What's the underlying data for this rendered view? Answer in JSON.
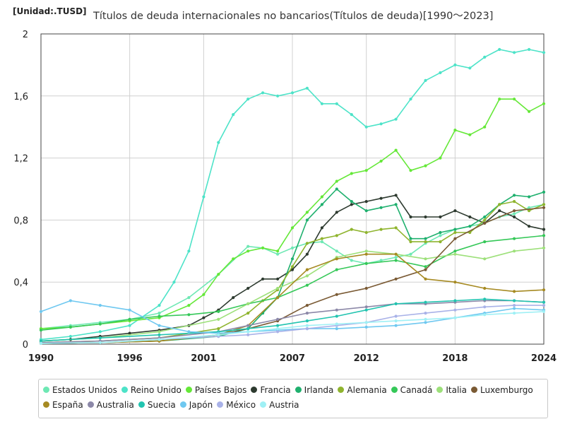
{
  "header": {
    "unit": "[Unidad:.TUSD]",
    "title": "Títulos de deuda internacionales no bancarios(Títulos de deuda)[1990～2023]"
  },
  "chart_data": {
    "type": "line",
    "title": "Títulos de deuda internacionales no bancarios(Títulos de deuda)[1990～2023]",
    "unit": "[Unidad:.TUSD]",
    "x_ticks": [
      "1990",
      "1996",
      "2001",
      "2007",
      "2012",
      "2018",
      "2024"
    ],
    "y_ticks": [
      "0",
      "0,4",
      "0,8",
      "1,2",
      "1,6",
      "2"
    ],
    "xlim": [
      1990,
      2024
    ],
    "ylim": [
      0,
      2
    ],
    "grid": true,
    "legend_position": "bottom",
    "series": [
      {
        "name": "Estados Unidos",
        "color": "#6ee8b4",
        "x": [
          1990,
          1992,
          1994,
          1996,
          1998,
          2000,
          2002,
          2004,
          2005,
          2006,
          2007,
          2008,
          2009,
          2010,
          2011,
          2012,
          2013,
          2014,
          2015,
          2016,
          2017,
          2018,
          2019,
          2020,
          2021,
          2022,
          2023,
          2024
        ],
        "y": [
          0.1,
          0.12,
          0.14,
          0.16,
          0.2,
          0.3,
          0.45,
          0.63,
          0.62,
          0.58,
          0.62,
          0.65,
          0.66,
          0.6,
          0.54,
          0.52,
          0.54,
          0.56,
          0.58,
          0.65,
          0.7,
          0.74,
          0.76,
          0.78,
          0.82,
          0.84,
          0.88,
          0.9
        ]
      },
      {
        "name": "Reino Unido",
        "color": "#4de3c8",
        "x": [
          1990,
          1992,
          1994,
          1996,
          1998,
          1999,
          2000,
          2001,
          2002,
          2003,
          2004,
          2005,
          2006,
          2007,
          2008,
          2009,
          2010,
          2011,
          2012,
          2013,
          2014,
          2015,
          2016,
          2017,
          2018,
          2019,
          2020,
          2021,
          2022,
          2023,
          2024
        ],
        "y": [
          0.03,
          0.05,
          0.08,
          0.12,
          0.25,
          0.4,
          0.6,
          0.95,
          1.3,
          1.48,
          1.58,
          1.62,
          1.6,
          1.62,
          1.65,
          1.55,
          1.55,
          1.48,
          1.4,
          1.42,
          1.45,
          1.58,
          1.7,
          1.75,
          1.8,
          1.78,
          1.85,
          1.9,
          1.88,
          1.9,
          1.88
        ]
      },
      {
        "name": "Países Bajos",
        "color": "#65e838",
        "x": [
          1990,
          1992,
          1994,
          1996,
          1998,
          2000,
          2001,
          2002,
          2003,
          2004,
          2005,
          2006,
          2007,
          2008,
          2009,
          2010,
          2011,
          2012,
          2013,
          2014,
          2015,
          2016,
          2017,
          2018,
          2019,
          2020,
          2021,
          2022,
          2023,
          2024
        ],
        "y": [
          0.1,
          0.11,
          0.13,
          0.15,
          0.17,
          0.25,
          0.32,
          0.45,
          0.55,
          0.6,
          0.62,
          0.6,
          0.75,
          0.85,
          0.95,
          1.05,
          1.1,
          1.12,
          1.18,
          1.25,
          1.12,
          1.15,
          1.2,
          1.38,
          1.35,
          1.4,
          1.58,
          1.58,
          1.5,
          1.55
        ]
      },
      {
        "name": "Francia",
        "color": "#2d3a2f",
        "x": [
          1990,
          1992,
          1994,
          1996,
          1998,
          2000,
          2001,
          2002,
          2003,
          2004,
          2005,
          2006,
          2007,
          2008,
          2009,
          2010,
          2011,
          2012,
          2013,
          2014,
          2015,
          2016,
          2017,
          2018,
          2019,
          2020,
          2021,
          2022,
          2023,
          2024
        ],
        "y": [
          0.02,
          0.03,
          0.05,
          0.07,
          0.09,
          0.12,
          0.17,
          0.22,
          0.3,
          0.36,
          0.42,
          0.42,
          0.48,
          0.58,
          0.75,
          0.85,
          0.9,
          0.92,
          0.94,
          0.96,
          0.82,
          0.82,
          0.82,
          0.86,
          0.82,
          0.78,
          0.86,
          0.82,
          0.76,
          0.74
        ]
      },
      {
        "name": "Irlanda",
        "color": "#1fb06e",
        "x": [
          1990,
          1994,
          1998,
          2002,
          2004,
          2005,
          2006,
          2007,
          2008,
          2009,
          2010,
          2011,
          2012,
          2013,
          2014,
          2015,
          2016,
          2017,
          2018,
          2019,
          2020,
          2021,
          2022,
          2023,
          2024
        ],
        "y": [
          0.005,
          0.01,
          0.02,
          0.05,
          0.1,
          0.2,
          0.3,
          0.55,
          0.8,
          0.9,
          1.0,
          0.92,
          0.86,
          0.88,
          0.9,
          0.68,
          0.68,
          0.72,
          0.74,
          0.76,
          0.82,
          0.9,
          0.96,
          0.95,
          0.98
        ]
      },
      {
        "name": "Alemania",
        "color": "#8fb42e",
        "x": [
          1990,
          1994,
          1998,
          2002,
          2004,
          2005,
          2006,
          2007,
          2008,
          2009,
          2010,
          2011,
          2012,
          2013,
          2014,
          2015,
          2016,
          2017,
          2018,
          2019,
          2020,
          2021,
          2022,
          2023,
          2024
        ],
        "y": [
          0.01,
          0.02,
          0.04,
          0.1,
          0.2,
          0.28,
          0.35,
          0.5,
          0.65,
          0.68,
          0.7,
          0.74,
          0.72,
          0.74,
          0.75,
          0.66,
          0.66,
          0.66,
          0.72,
          0.72,
          0.8,
          0.9,
          0.92,
          0.86,
          0.9
        ]
      },
      {
        "name": "Canadá",
        "color": "#35c858",
        "x": [
          1990,
          1992,
          1994,
          1996,
          1998,
          2000,
          2002,
          2004,
          2006,
          2008,
          2010,
          2012,
          2014,
          2016,
          2018,
          2020,
          2022,
          2024
        ],
        "y": [
          0.09,
          0.11,
          0.13,
          0.16,
          0.18,
          0.19,
          0.21,
          0.26,
          0.3,
          0.38,
          0.48,
          0.52,
          0.54,
          0.5,
          0.6,
          0.66,
          0.68,
          0.7
        ]
      },
      {
        "name": "Italia",
        "color": "#9de07a",
        "x": [
          1990,
          1994,
          1998,
          2002,
          2004,
          2006,
          2008,
          2010,
          2012,
          2014,
          2016,
          2018,
          2020,
          2022,
          2024
        ],
        "y": [
          0.02,
          0.04,
          0.08,
          0.16,
          0.26,
          0.36,
          0.44,
          0.56,
          0.6,
          0.58,
          0.55,
          0.58,
          0.55,
          0.6,
          0.62
        ]
      },
      {
        "name": "Luxemburgo",
        "color": "#7a5a34",
        "x": [
          1990,
          1994,
          1998,
          2002,
          2004,
          2006,
          2008,
          2010,
          2012,
          2014,
          2016,
          2018,
          2020,
          2022,
          2024
        ],
        "y": [
          0.005,
          0.01,
          0.02,
          0.06,
          0.1,
          0.15,
          0.25,
          0.32,
          0.36,
          0.42,
          0.48,
          0.68,
          0.78,
          0.86,
          0.88
        ]
      },
      {
        "name": "España",
        "color": "#a68a22",
        "x": [
          1990,
          1994,
          1998,
          2002,
          2004,
          2006,
          2008,
          2010,
          2012,
          2014,
          2016,
          2018,
          2020,
          2022,
          2024
        ],
        "y": [
          0.005,
          0.01,
          0.02,
          0.06,
          0.12,
          0.3,
          0.48,
          0.55,
          0.58,
          0.58,
          0.42,
          0.4,
          0.36,
          0.34,
          0.35
        ]
      },
      {
        "name": "Australia",
        "color": "#8c88a8",
        "x": [
          1990,
          1994,
          1998,
          2002,
          2004,
          2006,
          2008,
          2010,
          2012,
          2014,
          2016,
          2018,
          2020,
          2022,
          2024
        ],
        "y": [
          0.01,
          0.02,
          0.04,
          0.08,
          0.12,
          0.16,
          0.2,
          0.22,
          0.24,
          0.26,
          0.26,
          0.27,
          0.28,
          0.28,
          0.27
        ]
      },
      {
        "name": "Suecia",
        "color": "#22c4b0",
        "x": [
          1990,
          1994,
          1998,
          2002,
          2004,
          2006,
          2008,
          2010,
          2012,
          2014,
          2016,
          2018,
          2020,
          2022,
          2024
        ],
        "y": [
          0.02,
          0.04,
          0.06,
          0.08,
          0.1,
          0.12,
          0.15,
          0.18,
          0.22,
          0.26,
          0.27,
          0.28,
          0.29,
          0.28,
          0.27
        ]
      },
      {
        "name": "Japón",
        "color": "#6fc8f0",
        "x": [
          1990,
          1992,
          1994,
          1996,
          1998,
          2000,
          2002,
          2004,
          2006,
          2008,
          2010,
          2012,
          2014,
          2016,
          2018,
          2020,
          2022,
          2024
        ],
        "y": [
          0.21,
          0.28,
          0.25,
          0.22,
          0.12,
          0.08,
          0.07,
          0.08,
          0.09,
          0.1,
          0.1,
          0.11,
          0.12,
          0.14,
          0.17,
          0.2,
          0.23,
          0.22
        ]
      },
      {
        "name": "México",
        "color": "#a9b2e8",
        "x": [
          1990,
          1994,
          1998,
          2002,
          2004,
          2006,
          2008,
          2010,
          2012,
          2014,
          2016,
          2018,
          2020,
          2022,
          2024
        ],
        "y": [
          0.005,
          0.01,
          0.03,
          0.05,
          0.06,
          0.08,
          0.1,
          0.12,
          0.14,
          0.18,
          0.2,
          0.22,
          0.24,
          0.25,
          0.25
        ]
      },
      {
        "name": "Austria",
        "color": "#9ff0f5",
        "x": [
          1990,
          1994,
          1998,
          2002,
          2004,
          2006,
          2008,
          2010,
          2012,
          2014,
          2016,
          2018,
          2020,
          2022,
          2024
        ],
        "y": [
          0.005,
          0.01,
          0.03,
          0.06,
          0.08,
          0.1,
          0.12,
          0.13,
          0.14,
          0.15,
          0.16,
          0.17,
          0.19,
          0.2,
          0.21
        ]
      }
    ]
  }
}
